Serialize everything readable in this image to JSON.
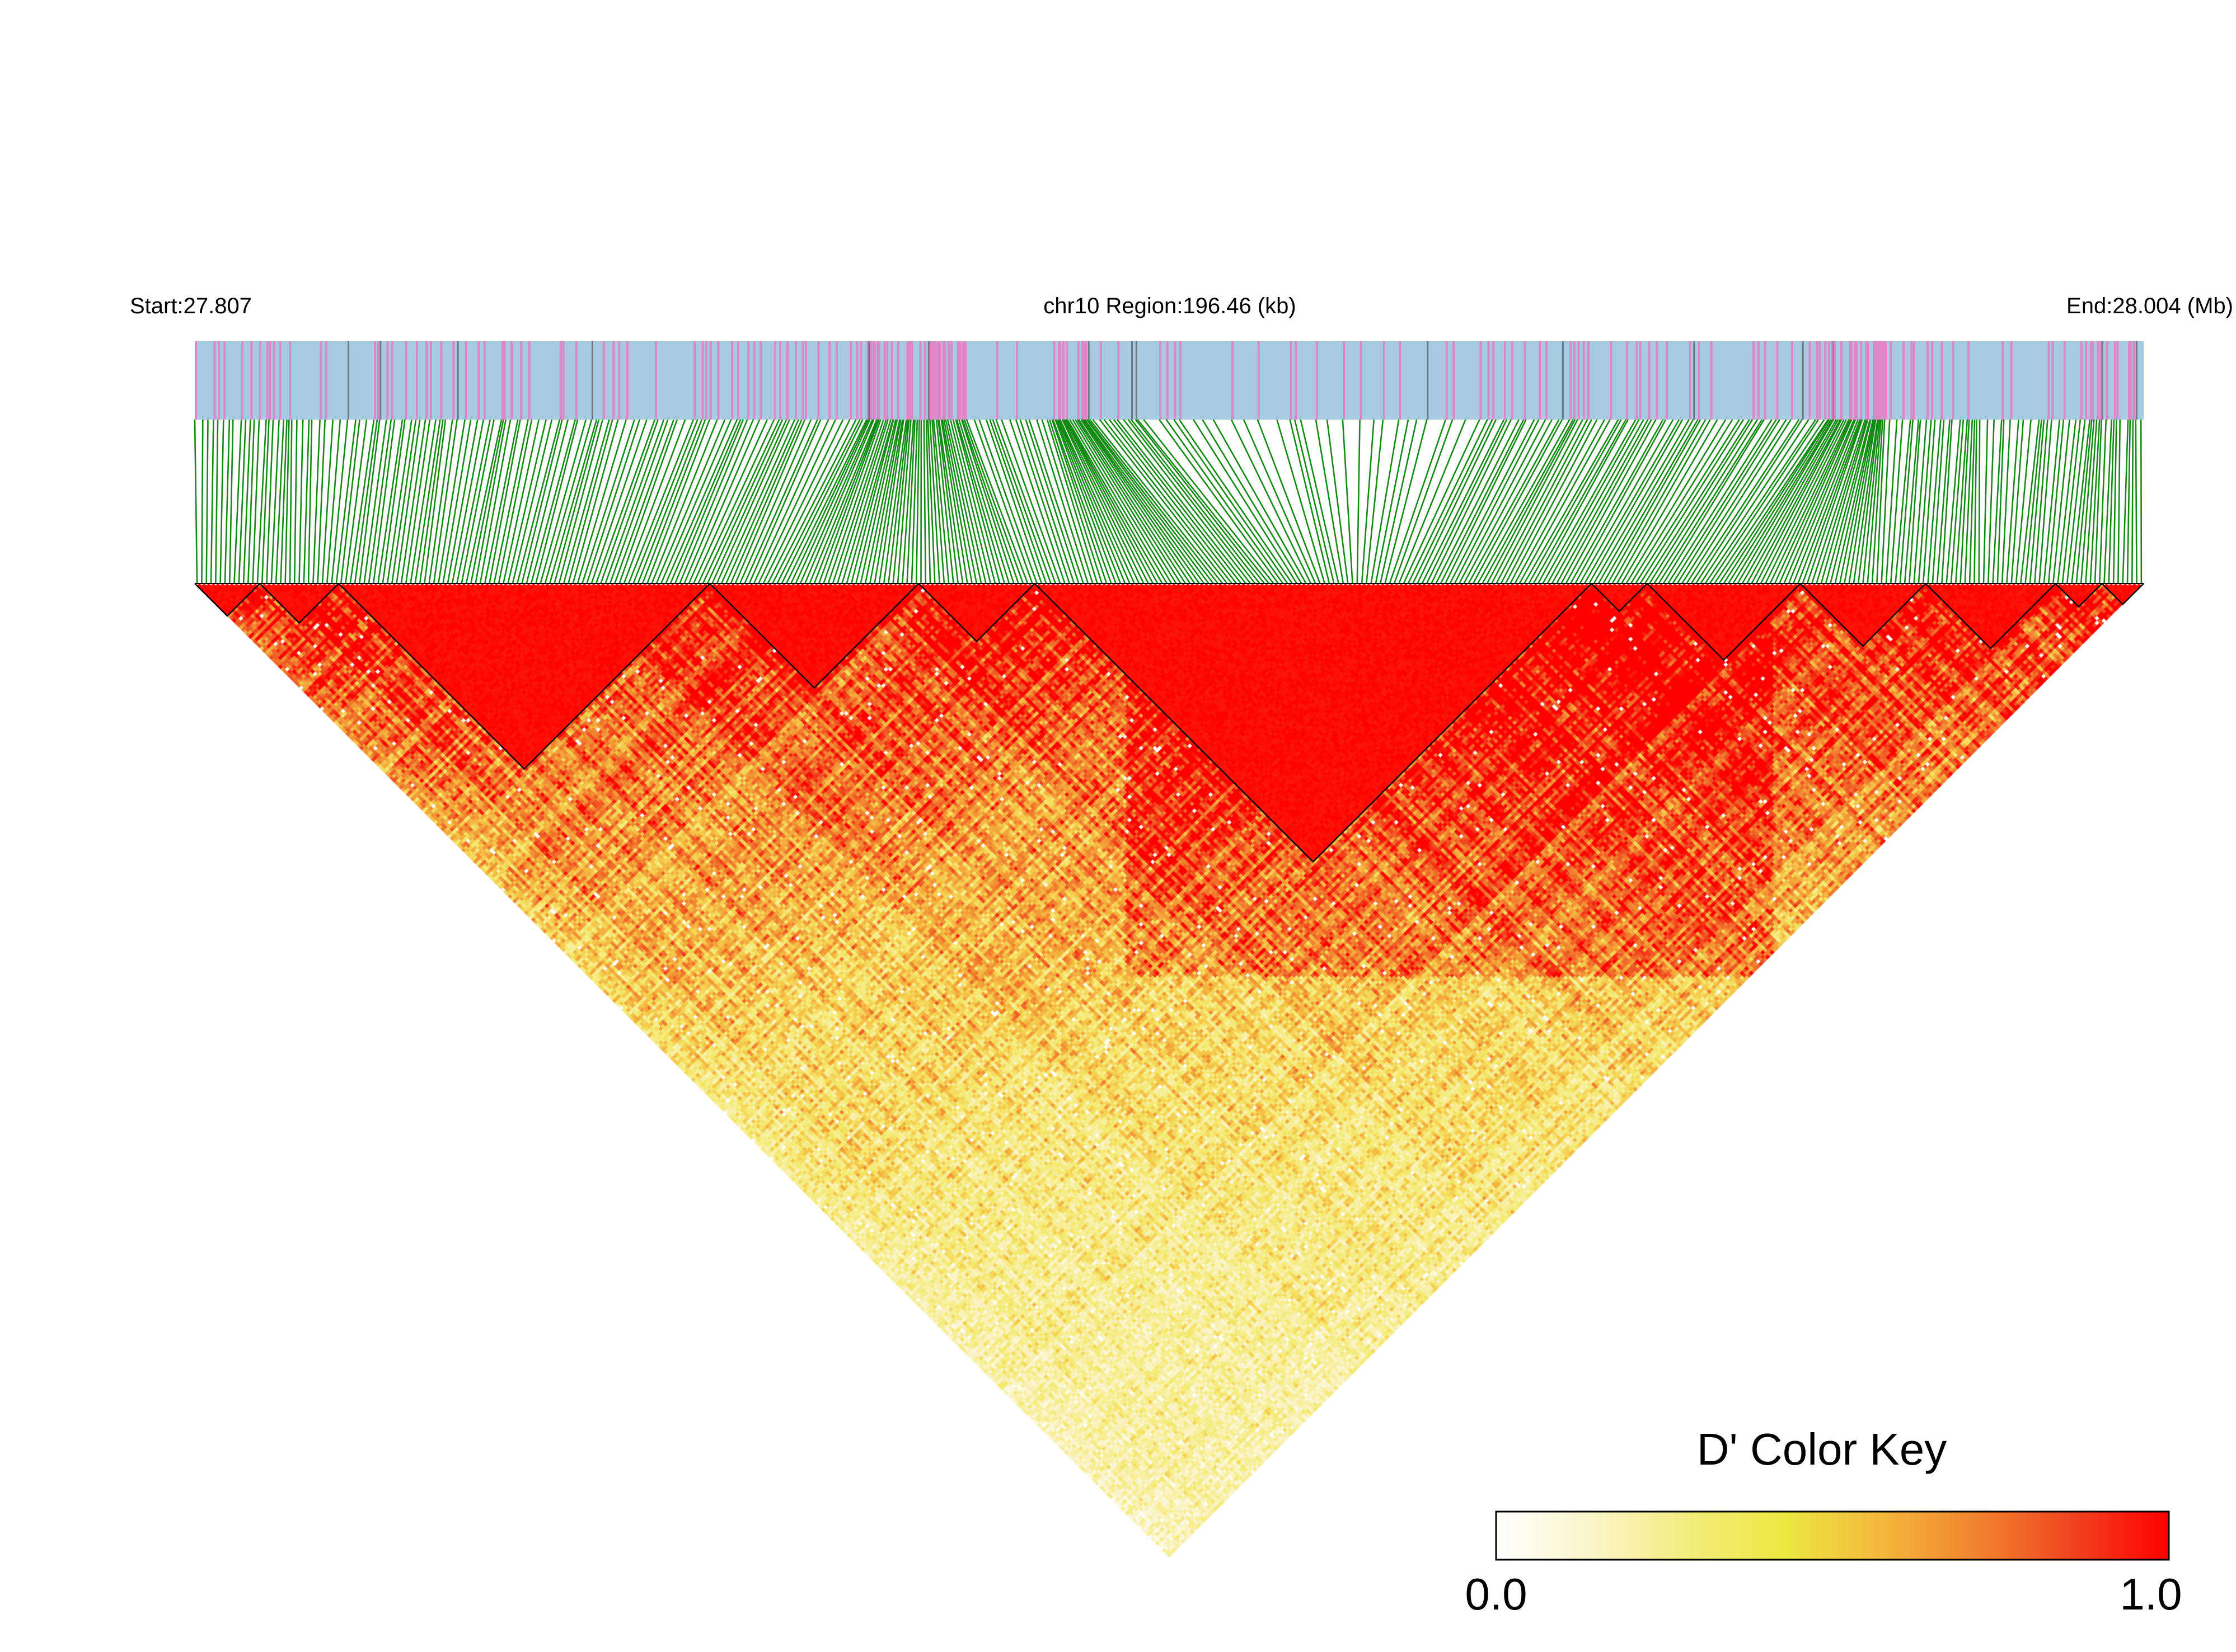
{
  "chart_data": {
    "type": "heatmap",
    "subtype": "linkage-disequilibrium-triangle",
    "title": "",
    "header": {
      "start_label": "Start:27.807",
      "region_label": "chr10 Region:196.46 (kb)",
      "end_label": "End:28.004 (Mb)"
    },
    "region": {
      "chromosome": "chr10",
      "start_mb": 27.807,
      "end_mb": 28.004,
      "length_kb": 196.46
    },
    "snp_count": 420,
    "value_range": [
      0,
      1
    ],
    "colors": {
      "gene_track_base": "#a6cbe0",
      "gene_track_pink": "#dd86c8",
      "gene_track_dark": "#6a7a85",
      "connector": "#138a13",
      "cell_high": "#ff0000",
      "cell_low": "#ffffff",
      "block_outline": "#000000"
    },
    "haplotype_blocks_snp_ranges": [
      [
        0,
        13
      ],
      [
        14,
        30
      ],
      [
        31,
        110
      ],
      [
        111,
        155
      ],
      [
        156,
        180
      ],
      [
        181,
        300
      ],
      [
        301,
        312
      ],
      [
        313,
        345
      ],
      [
        346,
        372
      ],
      [
        373,
        400
      ],
      [
        401,
        410
      ],
      [
        411,
        419
      ]
    ],
    "color_key": {
      "title": "D' Color Key",
      "min_label": "0.0",
      "max_label": "1.0",
      "min": 0.0,
      "max": 1.0,
      "gradient_stops": [
        "#ffffff",
        "#fbf5c8",
        "#f4ec7c",
        "#ece840",
        "#f4b83c",
        "#f2832e",
        "#f04420",
        "#ff0000"
      ]
    }
  }
}
